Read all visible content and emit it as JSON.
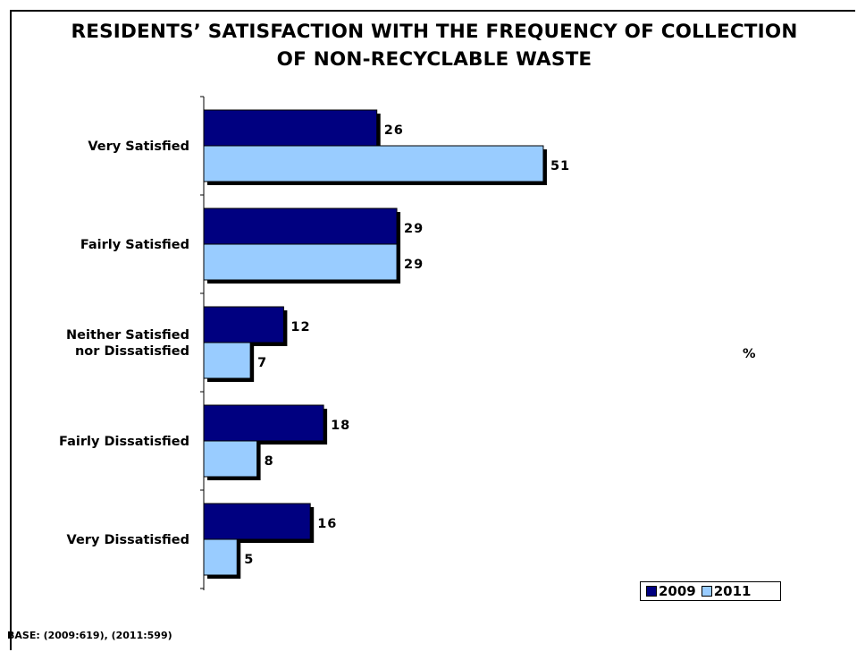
{
  "chart_data": {
    "type": "bar",
    "orientation": "horizontal",
    "title": "RESIDENTS’ SATISFACTION WITH THE FREQUENCY OF COLLECTION OF NON-RECYCLABLE WASTE",
    "title_lines": [
      "RESIDENTS’ SATISFACTION WITH THE FREQUENCY OF COLLECTION",
      "OF NON-RECYCLABLE WASTE"
    ],
    "categories": [
      [
        "Very Satisfied"
      ],
      [
        "Fairly Satisfied"
      ],
      [
        "Neither Satisfied",
        "nor Dissatisfied"
      ],
      [
        "Fairly Dissatisfied"
      ],
      [
        "Very Dissatisfied"
      ]
    ],
    "series": [
      {
        "name": "2009",
        "color": "#000080",
        "values": [
          26,
          29,
          12,
          18,
          16
        ]
      },
      {
        "name": "2011",
        "color": "#99CCFF",
        "values": [
          51,
          29,
          7,
          8,
          5
        ]
      }
    ],
    "unit_label": "%",
    "xlim": [
      0,
      100
    ],
    "grid": false,
    "legend_position": "bottom-right",
    "footnote": "BASE: (2009:619), (2011:599)"
  }
}
